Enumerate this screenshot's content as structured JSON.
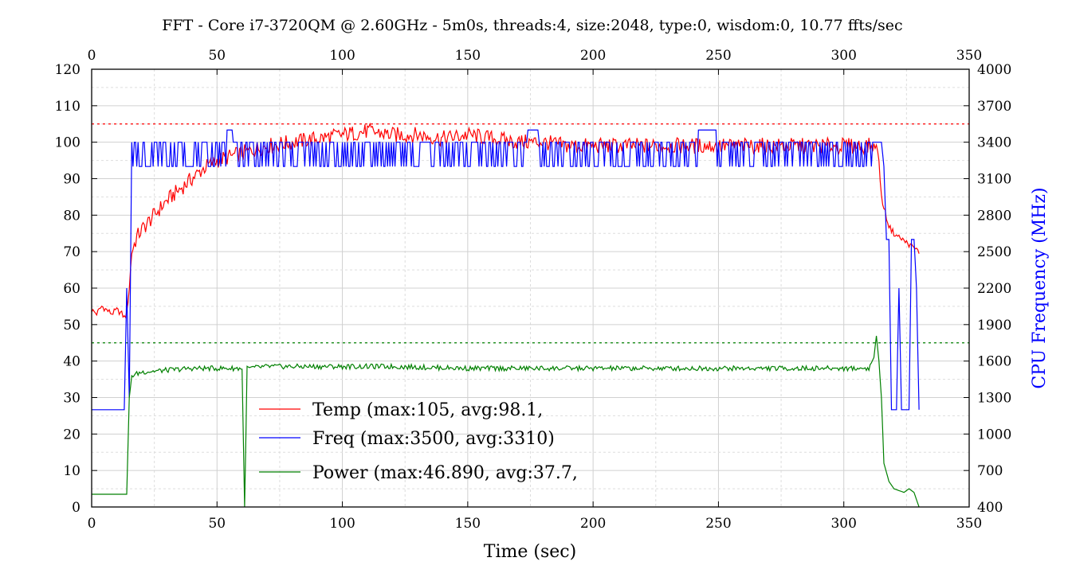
{
  "chart_data": {
    "type": "line",
    "title": "FFT - Core i7-3720QM @ 2.60GHz - 5m0s, threads:4, size:2048, type:0, wisdom:0, 10.77 ffts/sec",
    "xlabel": "Time (sec)",
    "ylabel": "",
    "y2label": "CPU Frequency (MHz)",
    "xlim": [
      0,
      350
    ],
    "ylim": [
      0,
      120
    ],
    "y2lim": [
      400,
      4000
    ],
    "x_ticks": [
      "0",
      "50",
      "100",
      "150",
      "200",
      "250",
      "300",
      "350"
    ],
    "x2_ticks": [
      "0",
      "50",
      "100",
      "150",
      "200",
      "250",
      "300",
      "350"
    ],
    "y_ticks": [
      "0",
      "10",
      "20",
      "30",
      "40",
      "50",
      "60",
      "70",
      "80",
      "90",
      "100",
      "110",
      "120"
    ],
    "y2_ticks": [
      "400",
      "700",
      "1000",
      "1300",
      "1600",
      "1900",
      "2200",
      "2500",
      "2800",
      "3100",
      "3400",
      "3700",
      "4000"
    ],
    "grid": true,
    "legend_position": "lower-left",
    "reference_lines": [
      {
        "axis": "y",
        "value": 105,
        "color": "#ff0000"
      },
      {
        "axis": "y",
        "value": 45,
        "color": "#008000"
      }
    ],
    "series": [
      {
        "name": "Temp (max:105, avg:98.1,",
        "axis": "left",
        "color": "#ff0000",
        "x": [
          0,
          2,
          4,
          6,
          8,
          10,
          12,
          13,
          14,
          15,
          16,
          18,
          20,
          25,
          30,
          35,
          40,
          45,
          50,
          55,
          60,
          65,
          70,
          80,
          90,
          100,
          110,
          120,
          130,
          140,
          150,
          160,
          170,
          180,
          190,
          200,
          210,
          220,
          230,
          240,
          250,
          260,
          270,
          280,
          290,
          300,
          305,
          310,
          312,
          313,
          314,
          315,
          316,
          318,
          320,
          322,
          324,
          326,
          328,
          330
        ],
        "y": [
          54,
          53,
          55,
          54,
          53,
          54,
          53,
          52,
          53,
          60,
          70,
          74,
          76,
          80,
          84,
          87,
          90,
          93,
          95,
          96,
          97,
          98,
          99,
          100,
          101,
          102,
          103,
          102,
          102,
          101,
          102,
          101,
          100,
          100,
          99,
          99,
          99,
          99,
          99,
          99,
          99,
          99,
          99,
          99,
          99,
          99,
          99,
          99,
          99,
          99,
          95,
          85,
          82,
          77,
          75,
          74,
          73,
          72,
          71,
          70
        ]
      },
      {
        "name": "Freq (max:3500, avg:3310)",
        "axis": "right",
        "color": "#0000ff",
        "x": [
          0,
          12,
          13,
          14,
          15,
          16,
          20,
          30,
          40,
          50,
          55,
          60,
          70,
          80,
          100,
          120,
          140,
          160,
          178,
          180,
          200,
          220,
          249,
          250,
          270,
          290,
          300,
          310,
          312,
          313,
          314,
          315,
          316,
          317,
          318,
          319,
          320,
          321,
          322,
          323,
          324,
          325,
          326,
          327,
          328,
          329,
          330
        ],
        "y": [
          1200,
          1200,
          1200,
          2200,
          1300,
          3400,
          3300,
          3300,
          3300,
          3300,
          3500,
          3300,
          3300,
          3300,
          3300,
          3300,
          3300,
          3300,
          3500,
          3300,
          3300,
          3300,
          3500,
          3300,
          3300,
          3300,
          3300,
          3300,
          3400,
          3400,
          3400,
          3400,
          3200,
          2600,
          2600,
          1200,
          1200,
          1200,
          2200,
          1200,
          1200,
          1200,
          1200,
          2600,
          2600,
          2200,
          1200
        ]
      },
      {
        "name": "Power (max:46.890, avg:37.7,",
        "axis": "left",
        "color": "#008000",
        "x": [
          0,
          5,
          10,
          14,
          15,
          16,
          20,
          30,
          40,
          50,
          55,
          56,
          57,
          58,
          60,
          61,
          62,
          70,
          80,
          100,
          120,
          150,
          200,
          250,
          300,
          305,
          310,
          312,
          313,
          314,
          315,
          316,
          318,
          320,
          322,
          324,
          326,
          328,
          330
        ],
        "y": [
          3.5,
          3.5,
          3.5,
          3.5,
          30,
          36,
          37,
          37.5,
          38,
          38,
          38,
          38,
          38,
          38,
          38,
          0,
          38,
          38.5,
          38.5,
          38.5,
          38.5,
          38,
          38,
          38,
          38,
          38,
          38,
          41,
          46.9,
          40,
          30,
          12,
          7,
          5,
          4.5,
          4,
          5,
          4,
          0
        ]
      }
    ]
  }
}
